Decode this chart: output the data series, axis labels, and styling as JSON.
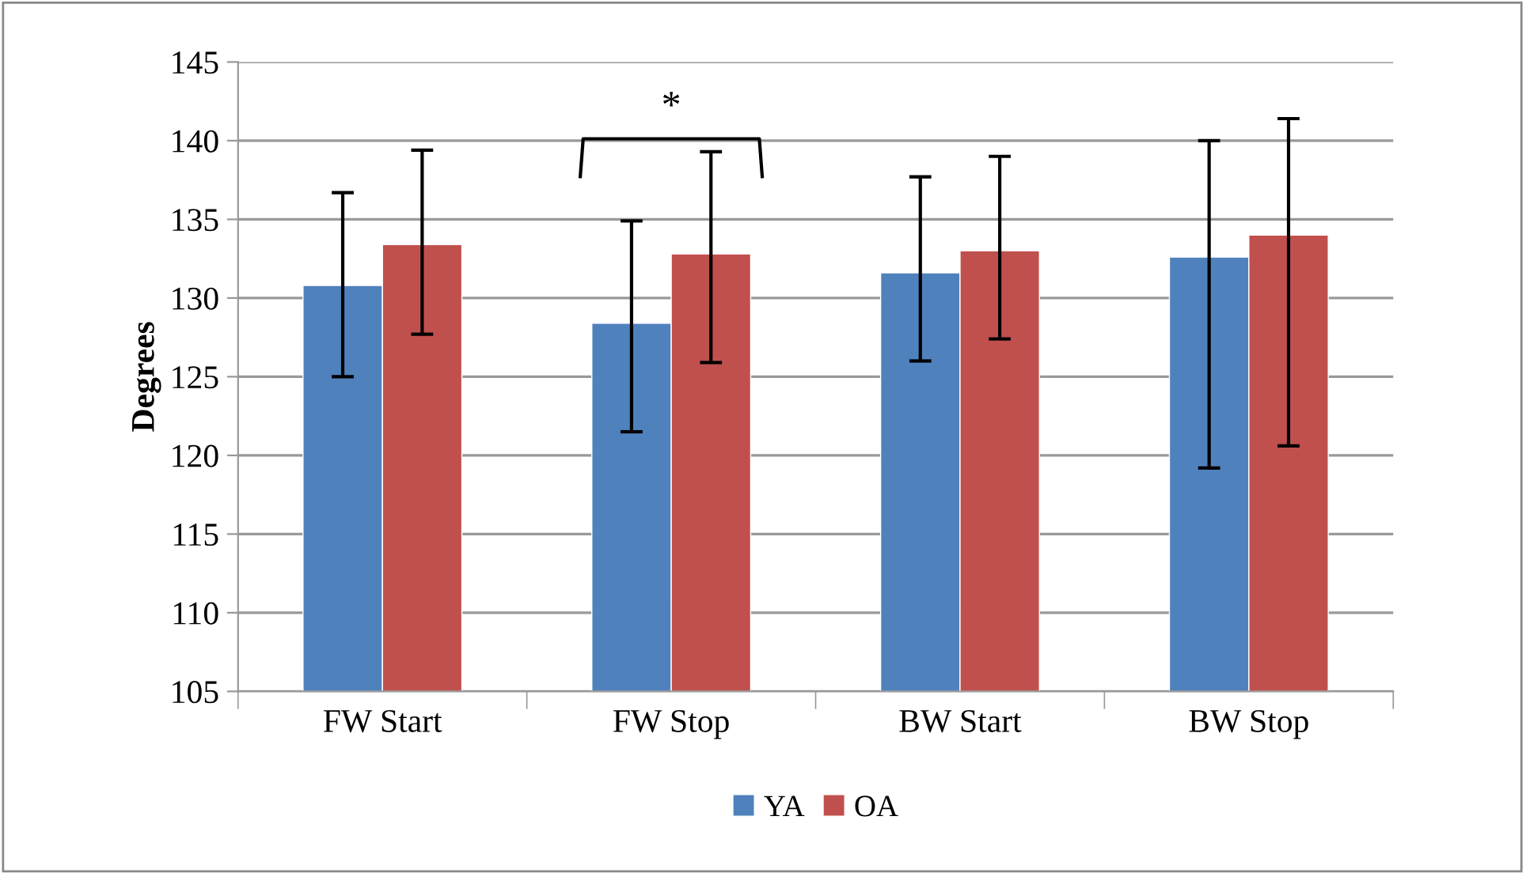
{
  "chart_data": {
    "type": "bar",
    "ylabel": "Degrees",
    "categories": [
      "FW Start",
      "FW Stop",
      "BW Start",
      "BW Stop"
    ],
    "series": [
      {
        "name": "YA",
        "color": "#4f81bd",
        "values": [
          130.8,
          128.4,
          131.6,
          132.6
        ],
        "errors": [
          [
            125.0,
            136.7
          ],
          [
            121.5,
            134.9
          ],
          [
            126.0,
            137.7
          ],
          [
            119.2,
            140.0
          ]
        ]
      },
      {
        "name": "OA",
        "color": "#c0504d",
        "values": [
          133.4,
          132.8,
          133.0,
          134.0
        ],
        "errors": [
          [
            127.7,
            139.4
          ],
          [
            125.9,
            139.3
          ],
          [
            127.4,
            139.0
          ],
          [
            120.6,
            141.4
          ]
        ]
      }
    ],
    "ylim": [
      105,
      145
    ],
    "yticks": [
      105,
      110,
      115,
      120,
      125,
      130,
      135,
      140,
      145
    ],
    "grid": "y",
    "legend": "bottom",
    "annotations": [
      "*"
    ]
  }
}
